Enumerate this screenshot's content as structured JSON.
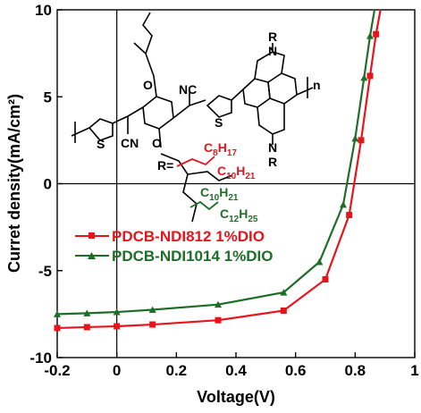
{
  "chart_data": {
    "type": "line",
    "title": "",
    "xlabel": "Voltage(V)",
    "ylabel": "Curret density(mA/cm²)",
    "xlim": [
      -0.2,
      1.0
    ],
    "ylim": [
      -10,
      10
    ],
    "xticks": [
      -0.2,
      0,
      0.2,
      0.4,
      0.6,
      0.8,
      1.0
    ],
    "xtick_labels": [
      "-0.2",
      "0",
      "0.2",
      "0.4",
      "0.6",
      "0.8",
      "1"
    ],
    "yticks": [
      -10,
      -5,
      0,
      5,
      10
    ],
    "ytick_labels": [
      "-10",
      "-5",
      "0",
      "5",
      "10"
    ],
    "grid": false,
    "legend_position": "lower-left",
    "series": [
      {
        "name": "PDCB-NDI812 1%DIO",
        "color": "#e8141c",
        "marker": "square",
        "x": [
          -0.2,
          -0.1,
          0.0,
          0.12,
          0.34,
          0.56,
          0.7,
          0.78,
          0.82,
          0.85,
          0.87,
          0.885
        ],
        "y": [
          -8.3,
          -8.25,
          -8.2,
          -8.1,
          -7.85,
          -7.3,
          -5.5,
          -1.8,
          2.5,
          6.2,
          8.6,
          10.0
        ]
      },
      {
        "name": "PDCB-NDI1014 1%DIO",
        "color": "#1e6e28",
        "marker": "triangle",
        "x": [
          -0.2,
          -0.1,
          0.0,
          0.12,
          0.34,
          0.56,
          0.68,
          0.76,
          0.8,
          0.83,
          0.85,
          0.865
        ],
        "y": [
          -7.5,
          -7.45,
          -7.38,
          -7.25,
          -6.95,
          -6.25,
          -4.5,
          -1.2,
          2.6,
          6.1,
          8.5,
          10.0
        ]
      }
    ],
    "annotations": {
      "struct_r_top": "R",
      "struct_r_bottom": "R",
      "struct_n_top": "N",
      "struct_n_bottom": "N",
      "struct_o": "O",
      "struct_nc": "NC",
      "struct_cn": "CN",
      "struct_s": "S",
      "struct_repeat": "n",
      "r_def": "R=",
      "r1_a": "C",
      "r1_a_sub": "8",
      "r1_a_h": "H",
      "r1_a_hsub": "17",
      "r1_b": "C",
      "r1_b_sub": "10",
      "r1_b_h": "H",
      "r1_b_hsub": "21",
      "r2_a": "C",
      "r2_a_sub": "10",
      "r2_a_h": "H",
      "r2_a_hsub": "21",
      "r2_b": "C",
      "r2_b_sub": "12",
      "r2_b_h": "H",
      "r2_b_hsub": "25",
      "r1_color": "#e8141c",
      "r2_color": "#1e6e28"
    }
  }
}
